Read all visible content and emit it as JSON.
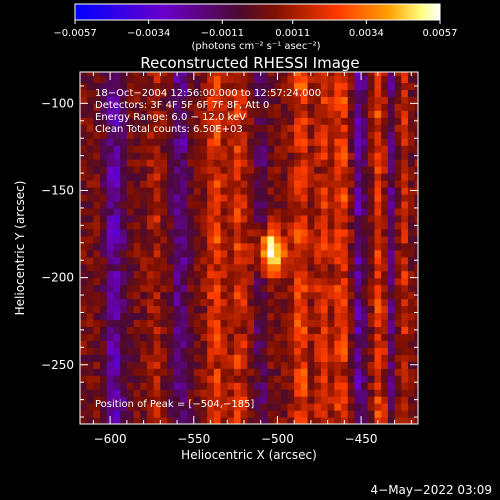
{
  "chart_data": {
    "type": "heatmap",
    "title": "Reconstructed RHESSI Image",
    "xlabel": "Heliocentric X (arcsec)",
    "ylabel": "Heliocentric Y (arcsec)",
    "xlim": [
      -618,
      -416
    ],
    "ylim": [
      -284,
      -82
    ],
    "x_ticks": [
      -600,
      -550,
      -500,
      -450
    ],
    "x_tick_labels": [
      "−600",
      "−550",
      "−500",
      "−450"
    ],
    "y_ticks": [
      -100,
      -150,
      -200,
      -250
    ],
    "y_tick_labels": [
      "−100",
      "−150",
      "−200",
      "−250"
    ],
    "colorbar": {
      "range": [
        -0.0057,
        0.0057
      ],
      "tick_values": [
        -0.0057,
        -0.0034,
        -0.0011,
        0.0011,
        0.0034,
        0.0057
      ],
      "tick_labels": [
        "−0.0057",
        "−0.0034",
        "−0.0011",
        "0.0011",
        "0.0034",
        "0.0057"
      ],
      "unit_label": "(photons cm⁻² s⁻¹ asec⁻²)",
      "colors": [
        "#0000ff",
        "#7000c0",
        "#5a0a3a",
        "#8c1000",
        "#ff3000",
        "#ffa000",
        "#ffff90",
        "#ffffff"
      ]
    },
    "annotations": [
      "18−Oct−2004 12:56:00.000 to 12:57:24.000",
      "Detectors: 3F 4F 5F 6F 7F 8F, Att 0",
      "Energy Range: 6.0 − 12.0 keV",
      "Clean     Total counts: 6.50E+03"
    ],
    "peak_label": "Position of Peak = [−504,−185]",
    "peak": [
      -504,
      -185
    ],
    "image_model": {
      "source": {
        "x": -504,
        "y": -185,
        "peak": 0.0057,
        "sigma_x": 6,
        "sigma_y": 9
      },
      "vertical_ridges": [
        {
          "x": -573,
          "amp": 0.0012,
          "width": 4
        },
        {
          "x": -537,
          "amp": 0.0025,
          "width": 5
        },
        {
          "x": -523,
          "amp": 0.0022,
          "width": 5
        },
        {
          "x": -486,
          "amp": 0.0028,
          "width": 5
        },
        {
          "x": -473,
          "amp": 0.0022,
          "width": 4
        },
        {
          "x": -462,
          "amp": 0.0026,
          "width": 5
        },
        {
          "x": -439,
          "amp": 0.0024,
          "width": 4
        },
        {
          "x": -425,
          "amp": 0.0018,
          "width": 3
        }
      ],
      "negative_ridges": [
        {
          "x": -597,
          "amp": -0.003,
          "width": 6
        },
        {
          "x": -558,
          "amp": -0.0024,
          "width": 5
        },
        {
          "x": -510,
          "amp": -0.0018,
          "width": 3
        },
        {
          "x": -451,
          "amp": -0.0026,
          "width": 4
        },
        {
          "x": -432,
          "amp": -0.002,
          "width": 3
        }
      ]
    }
  },
  "footer": {
    "date": "4−May−2022 03:09"
  }
}
